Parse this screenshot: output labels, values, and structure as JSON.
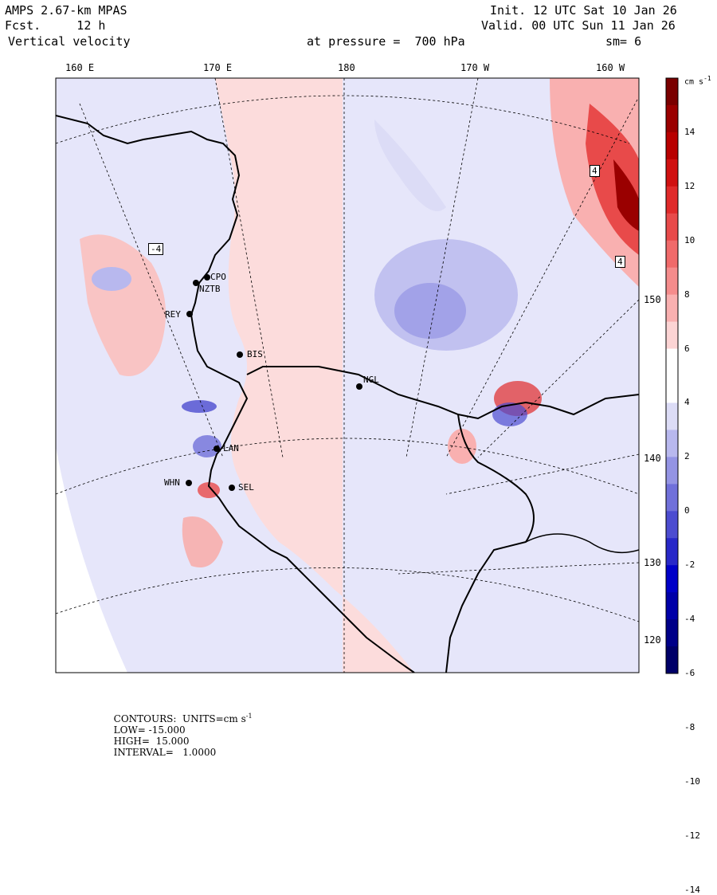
{
  "header": {
    "model": "AMPS 2.67-km MPAS",
    "fcst": "Fcst.     12 h",
    "field": "Vertical velocity",
    "init": "Init. 12 UTC Sat 10 Jan 26",
    "valid": "Valid. 00 UTC Sun 11 Jan 26",
    "level": "at pressure =  700 hPa",
    "smooth": "sm= 6"
  },
  "lon_labels": [
    "160 E",
    "170 E",
    "180",
    "170 W",
    "160 W"
  ],
  "lat_labels": [
    "150 W",
    "140 W",
    "130 W",
    "120 W"
  ],
  "stations": [
    {
      "id": "CPO"
    },
    {
      "id": "NZTB"
    },
    {
      "id": "REY"
    },
    {
      "id": "BIS"
    },
    {
      "id": "NGL"
    },
    {
      "id": "LAN"
    },
    {
      "id": "WHN"
    },
    {
      "id": "SEL"
    }
  ],
  "contour_labels": [
    "-4",
    "4",
    "4"
  ],
  "colorbar": {
    "unit": "cm s",
    "unit_exp": "-1",
    "ticks": [
      "14",
      "12",
      "10",
      "8",
      "6",
      "4",
      "2",
      "0",
      "-2",
      "-4",
      "-6",
      "-8",
      "-10",
      "-12",
      "-14"
    ],
    "colors": [
      "#7a0000",
      "#9a0000",
      "#b80000",
      "#d01010",
      "#e02a2a",
      "#e84a4a",
      "#f06a6a",
      "#f58c8c",
      "#f9b0b0",
      "#fcd4d4",
      "#ffffff",
      "#ffffff",
      "#dcdcf6",
      "#b8b8ee",
      "#9494e4",
      "#7070da",
      "#4c4cd0",
      "#2828c8",
      "#0000c8",
      "#0000a8",
      "#000088",
      "#000068"
    ]
  },
  "footer": {
    "contours": "CONTOURS:  UNITS=cm s",
    "units_exp": "-1",
    "low": "LOW= -15.000",
    "high": "HIGH=  15.000",
    "interval": "INTERVAL=   1.0000"
  }
}
